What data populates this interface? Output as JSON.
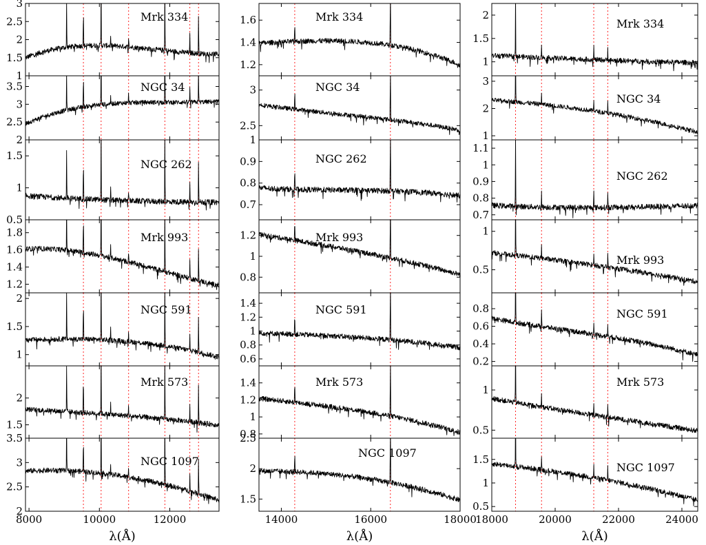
{
  "chart_data": {
    "type": "line",
    "line_color": "#000000",
    "marker_line_color": "#ff2222",
    "columns": [
      {
        "xlabel": "λ(Å)",
        "xlim": [
          7900,
          13400
        ],
        "xticks": [
          8000,
          10000,
          12000
        ],
        "marker_lines": [
          9546,
          10049,
          10830,
          11861,
          12570,
          12818
        ],
        "panels": [
          {
            "name": "Mrk 334",
            "ylim": [
              1,
              3
            ],
            "yticks": [
              1,
              1.5,
              2,
              2.5,
              3
            ],
            "ytick_labels": [
              "1",
              "1.5",
              "2",
              "2.5",
              "3"
            ]
          },
          {
            "name": "NGC 34",
            "ylim": [
              2,
              3.8
            ],
            "yticks": [
              2,
              2.5,
              3,
              3.5
            ],
            "ytick_labels": [
              "2",
              "2.5",
              "3",
              "3.5"
            ]
          },
          {
            "name": "NGC 262",
            "ylim": [
              0.5,
              1.75
            ],
            "yticks": [
              0.5,
              1,
              1.5
            ],
            "ytick_labels": [
              "0.5",
              "1",
              "1.5"
            ]
          },
          {
            "name": "Mrk 993",
            "ylim": [
              1.1,
              1.95
            ],
            "yticks": [
              1.2,
              1.4,
              1.6,
              1.8
            ],
            "ytick_labels": [
              "1.2",
              "1.4",
              "1.6",
              "1.8"
            ]
          },
          {
            "name": "NGC 591",
            "ylim": [
              0.8,
              2.1
            ],
            "yticks": [
              1,
              1.5,
              2
            ],
            "ytick_labels": [
              "1",
              "1.5",
              "2"
            ]
          },
          {
            "name": "Mrk 573",
            "ylim": [
              1.25,
              2.6
            ],
            "yticks": [
              1.5,
              2
            ],
            "ytick_labels": [
              "1.5",
              "2"
            ]
          },
          {
            "name": "NGC 1097",
            "ylim": [
              2,
              3.5
            ],
            "yticks": [
              2,
              2.5,
              3,
              3.5
            ],
            "ytick_labels": [
              "2",
              "2.5",
              "3",
              "3.5"
            ]
          }
        ]
      },
      {
        "xlabel": "λ(Å)",
        "xlim": [
          13500,
          18000
        ],
        "xticks": [
          14000,
          16000,
          18000
        ],
        "marker_lines": [
          14300,
          16440
        ],
        "panels": [
          {
            "name": "Mrk 334",
            "ylim": [
              1.1,
              1.75
            ],
            "yticks": [
              1.2,
              1.4,
              1.6
            ],
            "ytick_labels": [
              "1.2",
              "1.4",
              "1.6"
            ]
          },
          {
            "name": "NGC 34",
            "ylim": [
              2.3,
              3.2
            ],
            "yticks": [
              2.5,
              3
            ],
            "ytick_labels": [
              "2.5",
              "3"
            ]
          },
          {
            "name": "NGC 262",
            "ylim": [
              0.63,
              1.0
            ],
            "yticks": [
              0.7,
              0.8,
              0.9,
              1
            ],
            "ytick_labels": [
              "0.7",
              "0.8",
              "0.9",
              "1"
            ]
          },
          {
            "name": "Mrk 993",
            "ylim": [
              0.65,
              1.35
            ],
            "yticks": [
              0.8,
              1,
              1.2
            ],
            "ytick_labels": [
              "0.8",
              "1",
              "1.2"
            ]
          },
          {
            "name": "NGC 591",
            "ylim": [
              0.5,
              1.55
            ],
            "yticks": [
              0.6,
              0.8,
              1,
              1.2,
              1.4
            ],
            "ytick_labels": [
              "0.6",
              "0.8",
              "1",
              "1.2",
              "1.4"
            ]
          },
          {
            "name": "Mrk 573",
            "ylim": [
              0.75,
              1.6
            ],
            "yticks": [
              0.8,
              1,
              1.2,
              1.4
            ],
            "ytick_labels": [
              "0.8",
              "1",
              "1.2",
              "1.4"
            ]
          },
          {
            "name": "NGC 1097",
            "ylim": [
              1.3,
              2.5
            ],
            "yticks": [
              1.5,
              2,
              2.5
            ],
            "ytick_labels": [
              "1.5",
              "2",
              "2.5"
            ]
          }
        ]
      },
      {
        "xlabel": "λ(Å)",
        "xlim": [
          18000,
          24500
        ],
        "xticks": [
          18000,
          20000,
          22000,
          24000
        ],
        "marker_lines": [
          18750,
          19570,
          21218,
          21661
        ],
        "panels": [
          {
            "name": "Mrk 334",
            "ylim": [
              0.7,
              2.25
            ],
            "yticks": [
              1,
              1.5,
              2
            ],
            "ytick_labels": [
              "1",
              "1.5",
              "2"
            ]
          },
          {
            "name": "NGC 34",
            "ylim": [
              0.85,
              3.2
            ],
            "yticks": [
              1,
              2,
              3
            ],
            "ytick_labels": [
              "1",
              "2",
              "3"
            ]
          },
          {
            "name": "NGC 262",
            "ylim": [
              0.67,
              1.15
            ],
            "yticks": [
              0.7,
              0.8,
              0.9,
              1,
              1.1
            ],
            "ytick_labels": [
              "0.7",
              "0.8",
              "0.9",
              "1",
              "1.1"
            ]
          },
          {
            "name": "Mrk 993",
            "ylim": [
              0.2,
              1.15
            ],
            "yticks": [
              0.5,
              1
            ],
            "ytick_labels": [
              "0.5",
              "1"
            ]
          },
          {
            "name": "NGC 591",
            "ylim": [
              0.15,
              0.98
            ],
            "yticks": [
              0.2,
              0.4,
              0.6,
              0.8
            ],
            "ytick_labels": [
              "0.2",
              "0.4",
              "0.6",
              "0.8"
            ]
          },
          {
            "name": "Mrk 573",
            "ylim": [
              0.4,
              1.3
            ],
            "yticks": [
              0.5,
              1
            ],
            "ytick_labels": [
              "0.5",
              "1"
            ]
          },
          {
            "name": "NGC 1097",
            "ylim": [
              0.4,
              1.95
            ],
            "yticks": [
              0.5,
              1,
              1.5
            ],
            "ytick_labels": [
              "0.5",
              "1",
              "1.5"
            ]
          }
        ]
      }
    ]
  }
}
